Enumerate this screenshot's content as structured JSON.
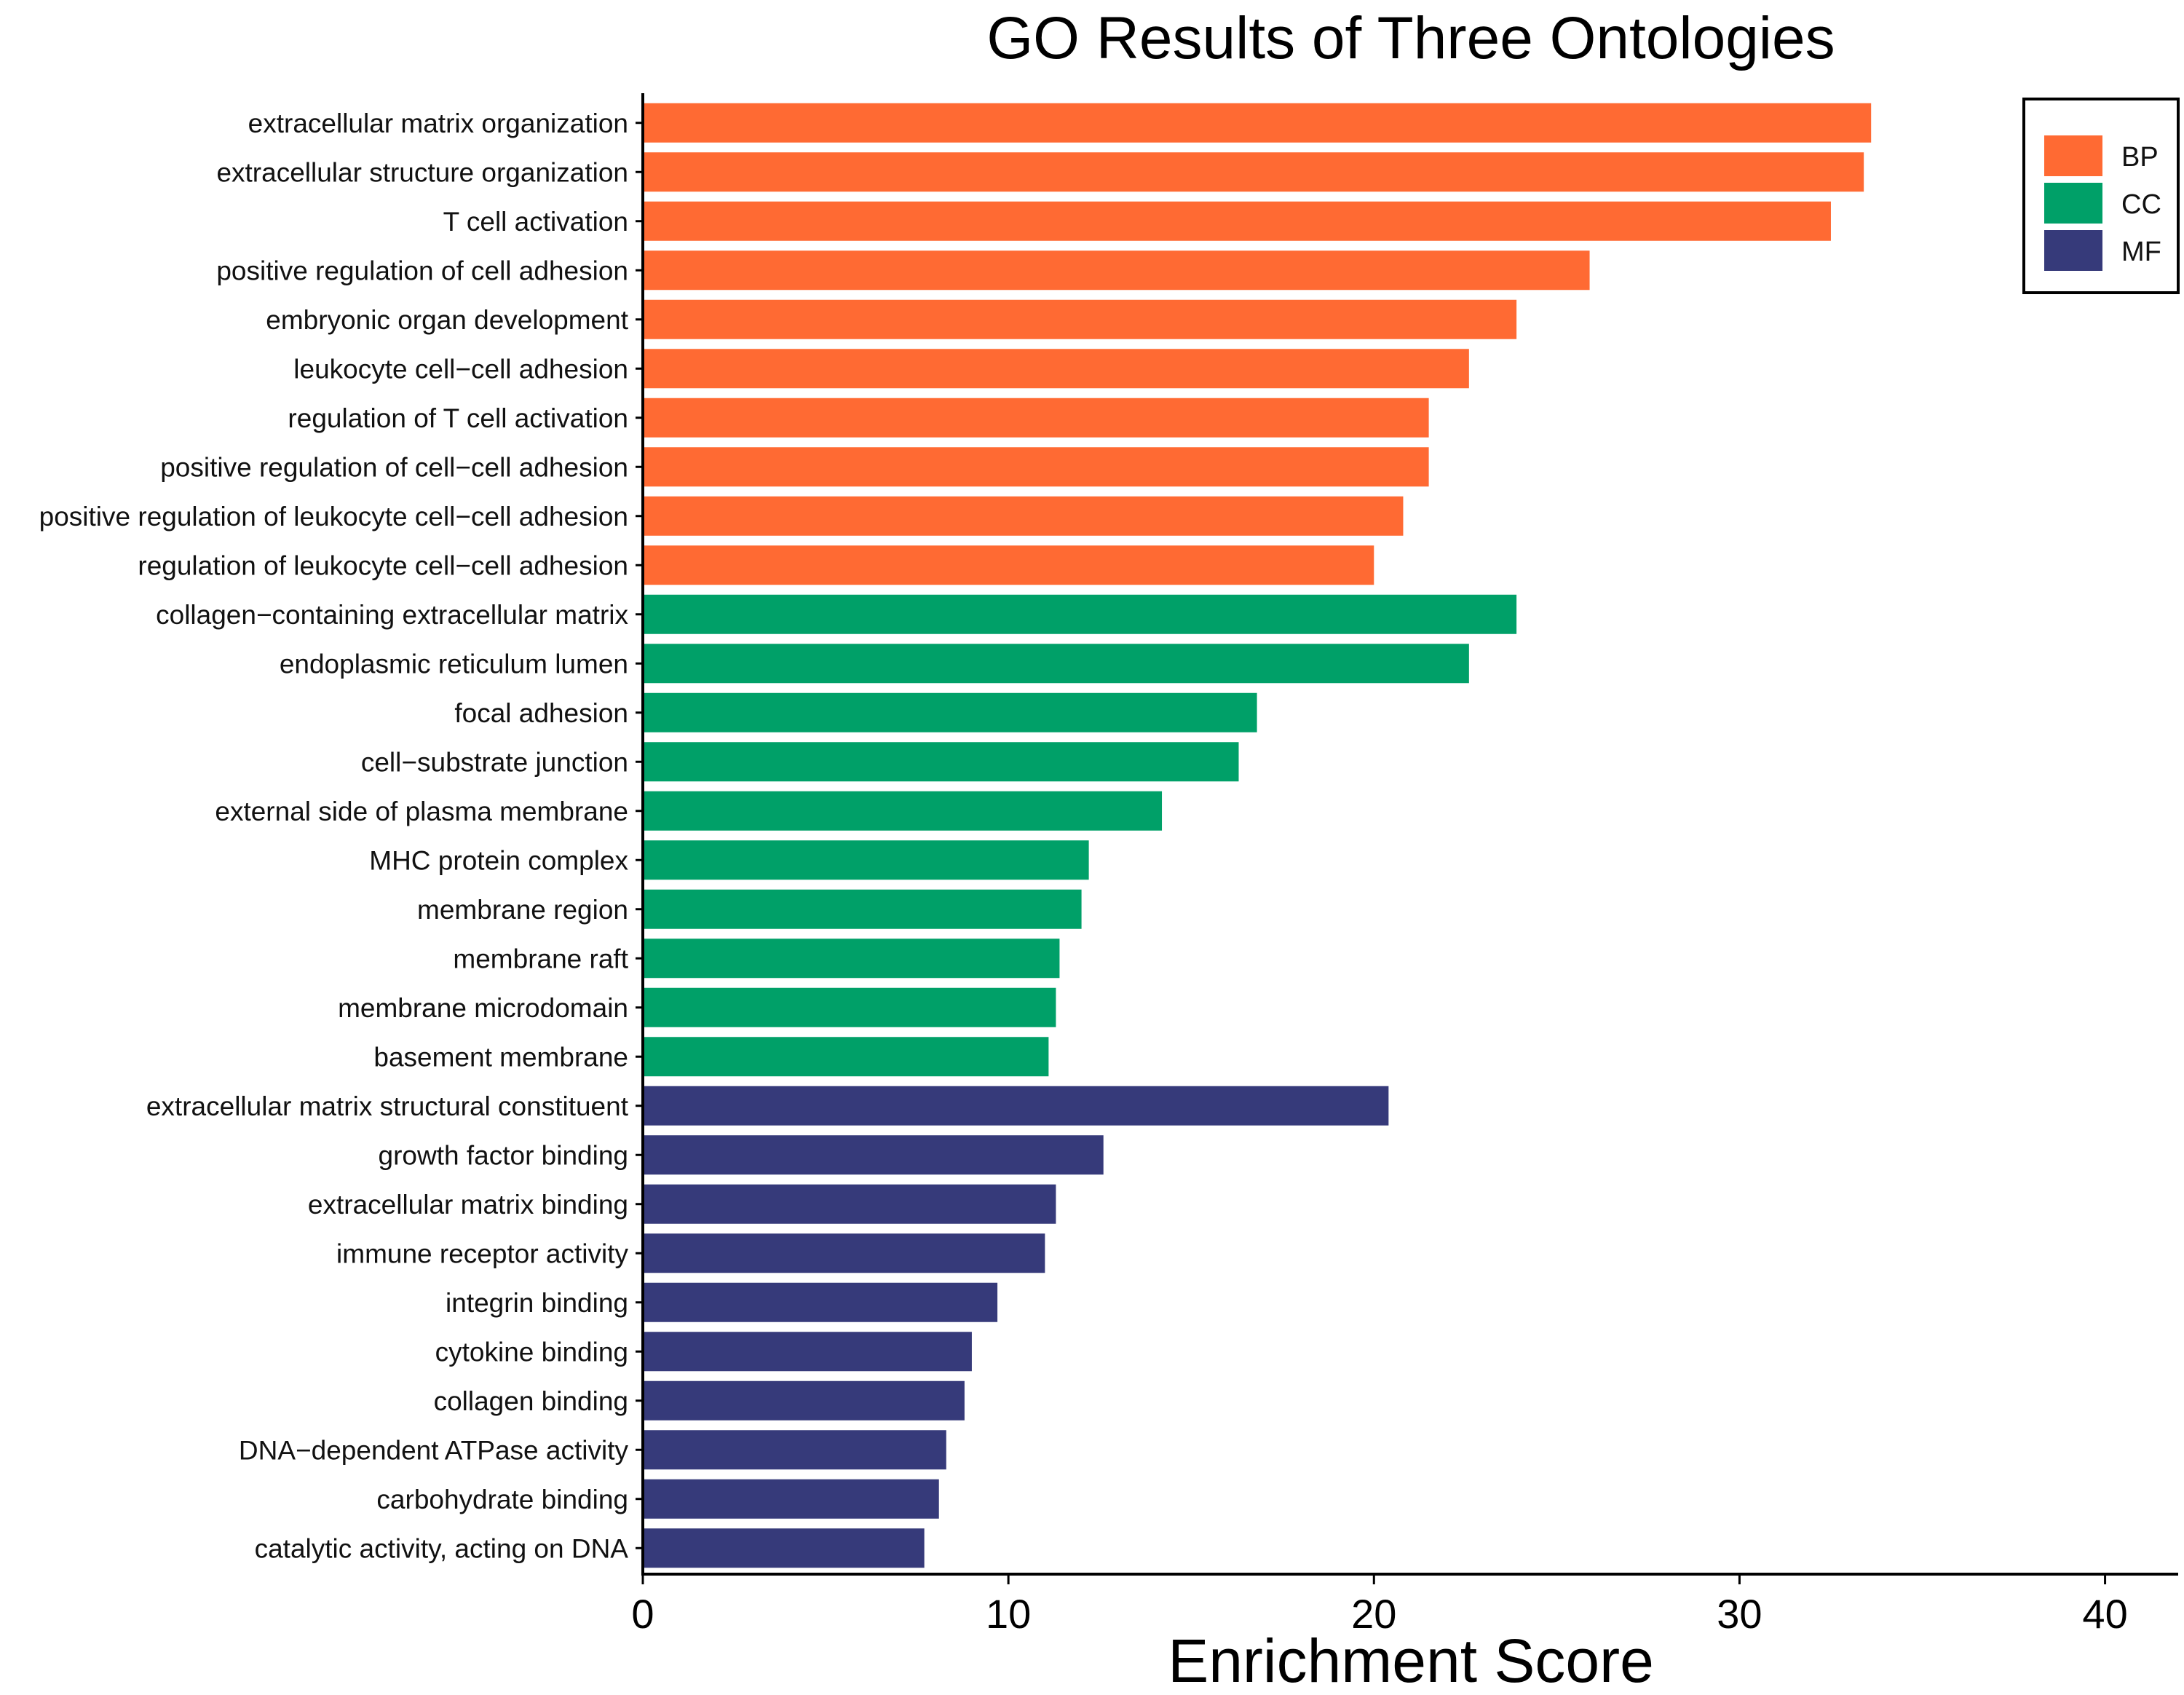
{
  "chart_data": {
    "type": "bar",
    "orientation": "horizontal",
    "title": "GO Results of Three Ontologies",
    "xlabel": "Enrichment Score",
    "ylabel": "",
    "xlim": [
      0,
      42
    ],
    "xticks": [
      0,
      10,
      20,
      30,
      40
    ],
    "grid": false,
    "legend_position": "top-right",
    "legend": [
      {
        "key": "BP",
        "label": "BP",
        "color": "#FF6A33"
      },
      {
        "key": "CC",
        "label": "CC",
        "color": "#00A068"
      },
      {
        "key": "MF",
        "label": "MF",
        "color": "#363A7A"
      }
    ],
    "bars": [
      {
        "label": "extracellular matrix organization",
        "value": 33.6,
        "group": "BP"
      },
      {
        "label": "extracellular structure organization",
        "value": 33.4,
        "group": "BP"
      },
      {
        "label": "T cell activation",
        "value": 32.5,
        "group": "BP"
      },
      {
        "label": "positive regulation of cell adhesion",
        "value": 25.9,
        "group": "BP"
      },
      {
        "label": "embryonic organ development",
        "value": 23.9,
        "group": "BP"
      },
      {
        "label": "leukocyte cell−cell adhesion",
        "value": 22.6,
        "group": "BP"
      },
      {
        "label": "regulation of T cell activation",
        "value": 21.5,
        "group": "BP"
      },
      {
        "label": "positive regulation of cell−cell adhesion",
        "value": 21.5,
        "group": "BP"
      },
      {
        "label": "positive regulation of leukocyte cell−cell adhesion",
        "value": 20.8,
        "group": "BP"
      },
      {
        "label": "regulation of leukocyte cell−cell adhesion",
        "value": 20.0,
        "group": "BP"
      },
      {
        "label": "collagen−containing extracellular matrix",
        "value": 23.9,
        "group": "CC"
      },
      {
        "label": "endoplasmic reticulum lumen",
        "value": 22.6,
        "group": "CC"
      },
      {
        "label": "focal adhesion",
        "value": 16.8,
        "group": "CC"
      },
      {
        "label": "cell−substrate junction",
        "value": 16.3,
        "group": "CC"
      },
      {
        "label": "external side of plasma membrane",
        "value": 14.2,
        "group": "CC"
      },
      {
        "label": "MHC protein complex",
        "value": 12.2,
        "group": "CC"
      },
      {
        "label": "membrane region",
        "value": 12.0,
        "group": "CC"
      },
      {
        "label": "membrane raft",
        "value": 11.4,
        "group": "CC"
      },
      {
        "label": "membrane microdomain",
        "value": 11.3,
        "group": "CC"
      },
      {
        "label": "basement membrane",
        "value": 11.1,
        "group": "CC"
      },
      {
        "label": "extracellular matrix structural constituent",
        "value": 20.4,
        "group": "MF"
      },
      {
        "label": "growth factor binding",
        "value": 12.6,
        "group": "MF"
      },
      {
        "label": "extracellular matrix binding",
        "value": 11.3,
        "group": "MF"
      },
      {
        "label": "immune receptor activity",
        "value": 11.0,
        "group": "MF"
      },
      {
        "label": "integrin binding",
        "value": 9.7,
        "group": "MF"
      },
      {
        "label": "cytokine binding",
        "value": 9.0,
        "group": "MF"
      },
      {
        "label": "collagen binding",
        "value": 8.8,
        "group": "MF"
      },
      {
        "label": "DNA−dependent ATPase activity",
        "value": 8.3,
        "group": "MF"
      },
      {
        "label": "carbohydrate binding",
        "value": 8.1,
        "group": "MF"
      },
      {
        "label": "catalytic activity, acting on DNA",
        "value": 7.7,
        "group": "MF"
      }
    ]
  }
}
